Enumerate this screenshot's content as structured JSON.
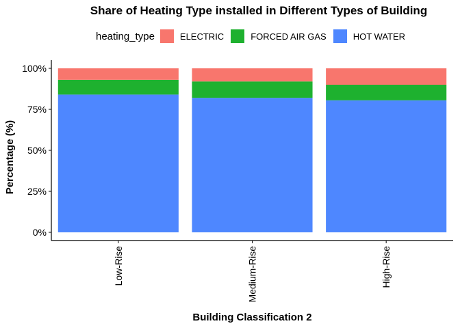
{
  "chart_data": {
    "type": "bar",
    "stacked": true,
    "title": "Share of Heating Type installed in Different Types of Building",
    "xlabel": "Building Classification 2",
    "ylabel": "Percentage (%)",
    "ylim": [
      0,
      1
    ],
    "yticks": [
      0,
      0.25,
      0.5,
      0.75,
      1.0
    ],
    "ytick_labels": [
      "0%",
      "25%",
      "50%",
      "75%",
      "100%"
    ],
    "categories": [
      "Low-Rise",
      "Medium-Rise",
      "High-Rise"
    ],
    "legend": {
      "title": "heating_type",
      "position": "top"
    },
    "grid": false,
    "series": [
      {
        "name": "ELECTRIC",
        "color": "#F8766D",
        "values": [
          0.07,
          0.08,
          0.1
        ]
      },
      {
        "name": "FORCED AIR GAS",
        "color": "#1EB12F",
        "values": [
          0.09,
          0.1,
          0.095
        ]
      },
      {
        "name": "HOT WATER",
        "color": "#4E87FF",
        "values": [
          0.84,
          0.82,
          0.805
        ]
      }
    ]
  }
}
